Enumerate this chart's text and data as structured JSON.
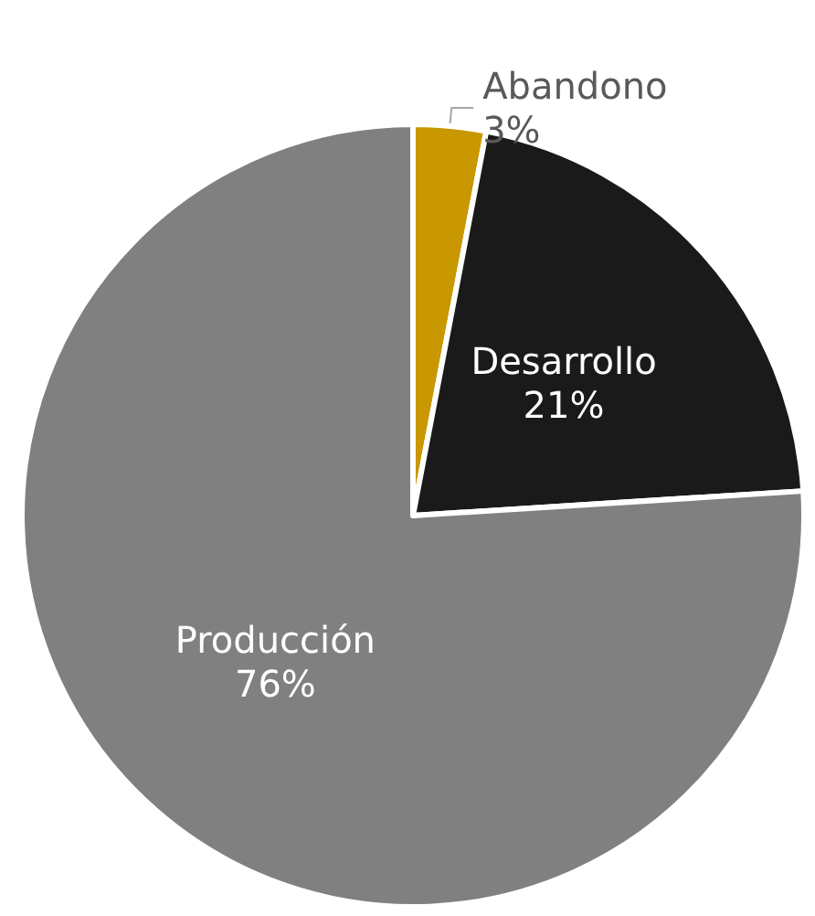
{
  "chart_data": {
    "type": "pie",
    "categories": [
      "Abandono",
      "Desarrollo",
      "Producción"
    ],
    "values": [
      3,
      21,
      76
    ],
    "colors": [
      "#c99700",
      "#1a1a1a",
      "#808080"
    ],
    "value_labels": [
      "3%",
      "21%",
      "76%"
    ],
    "legend": false
  }
}
